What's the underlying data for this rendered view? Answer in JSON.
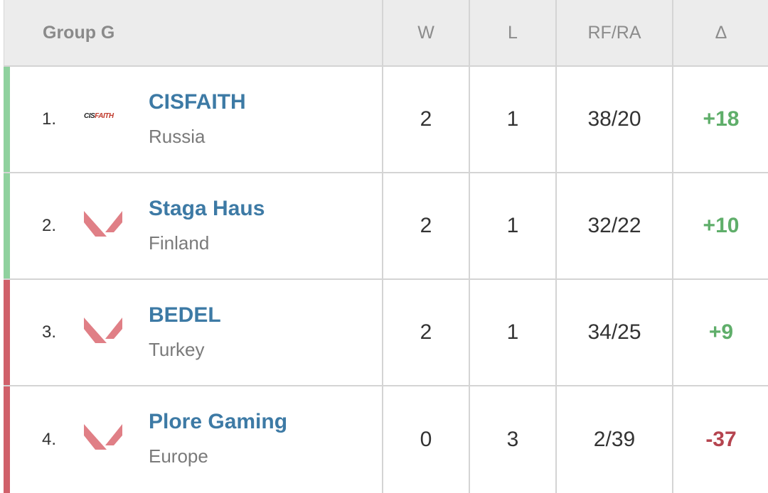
{
  "header": {
    "group": "Group G",
    "w": "W",
    "l": "L",
    "rf_ra": "RF/RA",
    "delta": "Δ"
  },
  "teams": [
    {
      "rank": "1.",
      "name": "CISFAITH",
      "region": "Russia",
      "logo": "cisfaith-logo",
      "logo_text_a": "CIS",
      "logo_text_b": "FAITH",
      "w": "2",
      "l": "1",
      "rf_ra": "38/20",
      "delta": "+18",
      "status_color": "#8fd19e",
      "delta_color": "#5fae6a"
    },
    {
      "rank": "2.",
      "name": "Staga Haus",
      "region": "Finland",
      "logo": "valorant-icon",
      "w": "2",
      "l": "1",
      "rf_ra": "32/22",
      "delta": "+10",
      "status_color": "#8fd19e",
      "delta_color": "#5fae6a"
    },
    {
      "rank": "3.",
      "name": "BEDEL",
      "region": "Turkey",
      "logo": "valorant-icon",
      "w": "2",
      "l": "1",
      "rf_ra": "34/25",
      "delta": "+9",
      "status_color": "#d0606a",
      "delta_color": "#5fae6a"
    },
    {
      "rank": "4.",
      "name": "Plore Gaming",
      "region": "Europe",
      "logo": "valorant-icon",
      "w": "0",
      "l": "3",
      "rf_ra": "2/39",
      "delta": "-37",
      "status_color": "#d0606a",
      "delta_color": "#b5444f"
    }
  ]
}
